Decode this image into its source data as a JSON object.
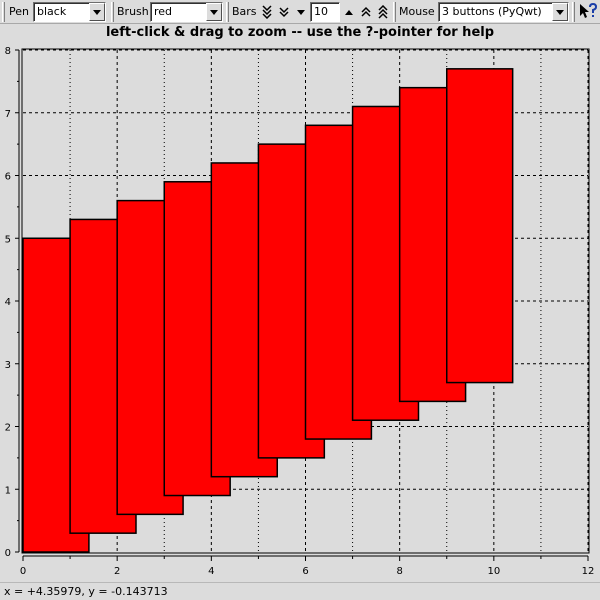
{
  "toolbar": {
    "pen_label": "Pen",
    "pen_value": "black",
    "brush_label": "Brush",
    "brush_value": "red",
    "bars_label": "Bars",
    "bars_value": "10",
    "mouse_label": "Mouse",
    "mouse_value": "3 buttons (PyQwt)"
  },
  "title": "left-click & drag to zoom -- use the ?-pointer for help",
  "status": "x = +4.35979, y = -0.143713",
  "colors": {
    "bar_fill": "#ff0000",
    "bar_stroke": "#000000",
    "canvas_bg": "#dcdcdc",
    "grid": "#000000"
  },
  "chart_data": {
    "type": "bar",
    "title": "",
    "xlabel": "",
    "ylabel": "",
    "xlim": [
      0,
      12
    ],
    "ylim": [
      0,
      8
    ],
    "xticks": [
      "0",
      "2",
      "4",
      "6",
      "8",
      "10",
      "12"
    ],
    "yticks": [
      "0",
      "1",
      "2",
      "3",
      "4",
      "5",
      "6",
      "7",
      "8"
    ],
    "grid": true,
    "bars": [
      {
        "x0": 0.0,
        "x1": 1.4,
        "y0": 0.0,
        "y1": 5.0
      },
      {
        "x0": 1.0,
        "x1": 2.4,
        "y0": 0.3,
        "y1": 5.3
      },
      {
        "x0": 2.0,
        "x1": 3.4,
        "y0": 0.6,
        "y1": 5.6
      },
      {
        "x0": 3.0,
        "x1": 4.4,
        "y0": 0.9,
        "y1": 5.9
      },
      {
        "x0": 4.0,
        "x1": 5.4,
        "y0": 1.2,
        "y1": 6.2
      },
      {
        "x0": 5.0,
        "x1": 6.4,
        "y0": 1.5,
        "y1": 6.5
      },
      {
        "x0": 6.0,
        "x1": 7.4,
        "y0": 1.8,
        "y1": 6.8
      },
      {
        "x0": 7.0,
        "x1": 8.4,
        "y0": 2.1,
        "y1": 7.1
      },
      {
        "x0": 8.0,
        "x1": 9.4,
        "y0": 2.4,
        "y1": 7.4
      },
      {
        "x0": 9.0,
        "x1": 10.4,
        "y0": 2.7,
        "y1": 7.7
      }
    ]
  }
}
